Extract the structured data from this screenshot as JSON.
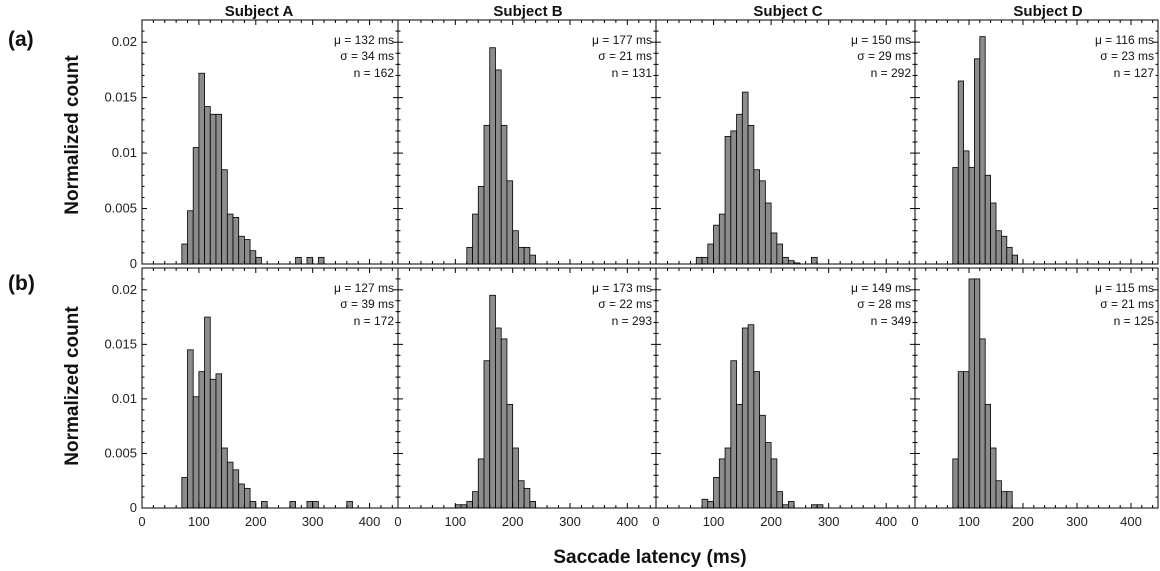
{
  "figure": {
    "xlabel": "Saccade latency (ms)",
    "ylabel": "Normalized count",
    "row_labels": [
      "(a)",
      "(b)"
    ],
    "column_titles": [
      "Subject A",
      "Subject B",
      "Subject C",
      "Subject D"
    ],
    "colors": {
      "bar_fill": "#8c8c8c",
      "bar_stroke": "#000000"
    }
  },
  "chart_data": [
    {
      "type": "bar",
      "row": "(a)",
      "title": "Subject A",
      "stats": {
        "mu": "μ = 132 ms",
        "sigma": "σ = 34 ms",
        "n": "n = 162"
      },
      "bin_width": 10,
      "xlim": [
        0,
        450
      ],
      "ylim": [
        0,
        0.022
      ],
      "x": [
        75,
        85,
        95,
        105,
        115,
        125,
        135,
        145,
        155,
        165,
        175,
        185,
        195,
        205,
        275,
        295,
        315
      ],
      "values": [
        0.0018,
        0.0048,
        0.0105,
        0.0172,
        0.0142,
        0.0135,
        0.0135,
        0.0085,
        0.0045,
        0.0042,
        0.0025,
        0.0022,
        0.0012,
        0.0006,
        0.0006,
        0.0006,
        0.0006
      ]
    },
    {
      "type": "bar",
      "row": "(a)",
      "title": "Subject B",
      "stats": {
        "mu": "μ = 177 ms",
        "sigma": "σ = 21 ms",
        "n": "n = 131"
      },
      "bin_width": 10,
      "xlim": [
        0,
        450
      ],
      "ylim": [
        0,
        0.022
      ],
      "x": [
        125,
        135,
        145,
        155,
        165,
        175,
        185,
        195,
        205,
        215,
        225,
        235
      ],
      "values": [
        0.0015,
        0.0045,
        0.007,
        0.0125,
        0.0195,
        0.0175,
        0.0125,
        0.0075,
        0.003,
        0.0015,
        0.0015,
        0.0008
      ]
    },
    {
      "type": "bar",
      "row": "(a)",
      "title": "Subject C",
      "stats": {
        "mu": "μ = 150 ms",
        "sigma": "σ = 29 ms",
        "n": "n = 292"
      },
      "bin_width": 10,
      "xlim": [
        0,
        450
      ],
      "ylim": [
        0,
        0.022
      ],
      "x": [
        75,
        85,
        95,
        105,
        115,
        125,
        135,
        145,
        155,
        165,
        175,
        185,
        195,
        205,
        215,
        225,
        235,
        245,
        275
      ],
      "values": [
        0.0006,
        0.0006,
        0.0018,
        0.0035,
        0.0045,
        0.0115,
        0.012,
        0.0135,
        0.0155,
        0.0125,
        0.0085,
        0.0075,
        0.0055,
        0.0028,
        0.0018,
        0.0006,
        0.0003,
        0.0001,
        0.0006
      ]
    },
    {
      "type": "bar",
      "row": "(a)",
      "title": "Subject D",
      "stats": {
        "mu": "μ = 116 ms",
        "sigma": "σ = 23 ms",
        "n": "n = 127"
      },
      "bin_width": 10,
      "xlim": [
        0,
        450
      ],
      "ylim": [
        0,
        0.022
      ],
      "x": [
        75,
        85,
        95,
        105,
        115,
        125,
        135,
        145,
        155,
        165,
        175,
        185
      ],
      "values": [
        0.0087,
        0.0165,
        0.0102,
        0.0087,
        0.0185,
        0.0205,
        0.008,
        0.0055,
        0.003,
        0.0025,
        0.0015,
        0.0008
      ]
    },
    {
      "type": "bar",
      "row": "(b)",
      "title": "Subject A",
      "stats": {
        "mu": "μ = 127 ms",
        "sigma": "σ = 39 ms",
        "n": "n = 172"
      },
      "bin_width": 10,
      "xlim": [
        0,
        450
      ],
      "ylim": [
        0,
        0.022
      ],
      "x": [
        75,
        85,
        95,
        105,
        115,
        125,
        135,
        145,
        155,
        165,
        175,
        185,
        195,
        215,
        265,
        295,
        305,
        365
      ],
      "values": [
        0.0028,
        0.0145,
        0.0102,
        0.0125,
        0.0175,
        0.0118,
        0.0123,
        0.0055,
        0.0042,
        0.0035,
        0.0022,
        0.0018,
        0.0006,
        0.0006,
        0.0006,
        0.0006,
        0.0006,
        0.0006
      ]
    },
    {
      "type": "bar",
      "row": "(b)",
      "title": "Subject B",
      "stats": {
        "mu": "μ = 173 ms",
        "sigma": "σ = 22 ms",
        "n": "n = 293"
      },
      "bin_width": 10,
      "xlim": [
        0,
        450
      ],
      "ylim": [
        0,
        0.022
      ],
      "x": [
        105,
        115,
        125,
        135,
        145,
        155,
        165,
        175,
        185,
        195,
        205,
        215,
        225,
        235
      ],
      "values": [
        0.0003,
        0.0003,
        0.0006,
        0.0015,
        0.0045,
        0.0135,
        0.0195,
        0.0165,
        0.0155,
        0.0095,
        0.0055,
        0.0025,
        0.0018,
        0.0006
      ]
    },
    {
      "type": "bar",
      "row": "(b)",
      "title": "Subject C",
      "stats": {
        "mu": "μ = 149 ms",
        "sigma": "σ = 28 ms",
        "n": "n = 349"
      },
      "bin_width": 10,
      "xlim": [
        0,
        450
      ],
      "ylim": [
        0,
        0.022
      ],
      "x": [
        85,
        95,
        105,
        115,
        125,
        135,
        145,
        155,
        165,
        175,
        185,
        195,
        205,
        215,
        225,
        235,
        275,
        285
      ],
      "values": [
        0.0008,
        0.0006,
        0.0028,
        0.0045,
        0.0055,
        0.0135,
        0.0095,
        0.0165,
        0.0168,
        0.0125,
        0.0085,
        0.006,
        0.0045,
        0.0015,
        0.0003,
        0.0006,
        0.0003,
        0.0003
      ]
    },
    {
      "type": "bar",
      "row": "(b)",
      "title": "Subject D",
      "stats": {
        "mu": "μ = 115 ms",
        "sigma": "σ = 21 ms",
        "n": "n = 125"
      },
      "bin_width": 10,
      "xlim": [
        0,
        450
      ],
      "ylim": [
        0,
        0.022
      ],
      "x": [
        75,
        85,
        95,
        105,
        115,
        125,
        135,
        145,
        155,
        165,
        175
      ],
      "values": [
        0.0045,
        0.0125,
        0.0125,
        0.021,
        0.021,
        0.0155,
        0.0095,
        0.0055,
        0.0025,
        0.0015,
        0.0015
      ]
    }
  ],
  "axes": {
    "y_ticks": [
      0,
      0.005,
      0.01,
      0.015,
      0.02
    ],
    "y_tick_labels": [
      "0",
      "0.005",
      "0.01",
      "0.015",
      "0.02"
    ],
    "x_ticks": [
      0,
      100,
      200,
      300,
      400
    ],
    "x_tick_labels": [
      "0",
      "100",
      "200",
      "300",
      "400"
    ]
  }
}
